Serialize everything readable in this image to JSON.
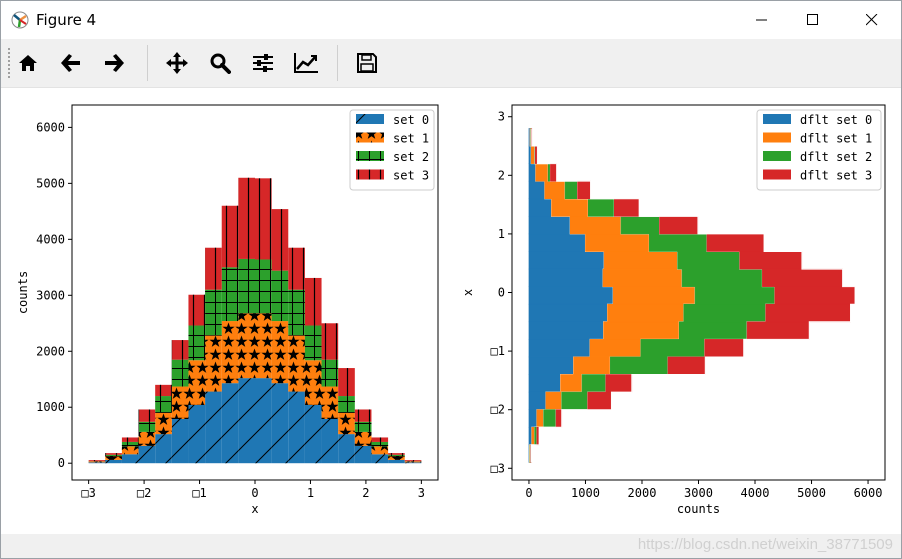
{
  "window": {
    "title": "Figure 4"
  },
  "toolbar": {
    "buttons": [
      {
        "name": "home",
        "icon": "home-icon"
      },
      {
        "name": "back",
        "icon": "arrow-left-icon"
      },
      {
        "name": "forward",
        "icon": "arrow-right-icon"
      },
      {
        "name": "pan",
        "icon": "move-icon"
      },
      {
        "name": "zoom",
        "icon": "magnifier-icon"
      },
      {
        "name": "subplots",
        "icon": "sliders-icon"
      },
      {
        "name": "edit-axes",
        "icon": "line-chart-icon"
      },
      {
        "name": "save",
        "icon": "floppy-disk-icon"
      }
    ]
  },
  "statusbar": {
    "watermark": "https://blog.csdn.net/weixin_38771509"
  },
  "chart_data": [
    {
      "type": "bar",
      "orientation": "vertical",
      "stacked": true,
      "xlabel": "x",
      "ylabel": "counts",
      "xticks": [
        "□3",
        "□2",
        "□1",
        "0",
        "1",
        "2",
        "3"
      ],
      "xtick_values": [
        -3,
        -2,
        -1,
        0,
        1,
        2,
        3
      ],
      "yticks": [
        "0",
        "1000",
        "2000",
        "3000",
        "4000",
        "5000",
        "6000"
      ],
      "ytick_values": [
        0,
        1000,
        2000,
        3000,
        4000,
        5000,
        6000
      ],
      "xlim": [
        -3.3,
        3.3
      ],
      "ylim": [
        -300,
        6400
      ],
      "bin_edges": [
        -3.0,
        -2.7,
        -2.4,
        -2.1,
        -1.8,
        -1.5,
        -1.2,
        -0.9,
        -0.6,
        -0.3,
        0.0,
        0.3,
        0.6,
        0.9,
        1.2,
        1.5,
        1.8,
        2.1,
        2.4,
        2.7,
        3.0
      ],
      "legend_position": "upper right",
      "series": [
        {
          "name": "set 0",
          "color": "#1f77b4",
          "hatch": "/",
          "values": [
            15,
            60,
            160,
            310,
            520,
            790,
            1040,
            1280,
            1430,
            1520,
            1520,
            1430,
            1280,
            1040,
            790,
            520,
            310,
            160,
            60,
            15
          ]
        },
        {
          "name": "set 1",
          "color": "#ff7f0e",
          "hatch": "*",
          "values": [
            15,
            60,
            140,
            250,
            380,
            580,
            800,
            1000,
            1110,
            1160,
            1160,
            1110,
            1000,
            800,
            580,
            380,
            250,
            140,
            60,
            15
          ]
        },
        {
          "name": "set 2",
          "color": "#2ca02c",
          "hatch": "+",
          "values": [
            5,
            30,
            80,
            180,
            300,
            480,
            620,
            820,
            960,
            970,
            960,
            900,
            820,
            620,
            480,
            300,
            180,
            80,
            30,
            5
          ]
        },
        {
          "name": "set 3",
          "color": "#d62728",
          "hatch": "|",
          "values": [
            20,
            30,
            80,
            220,
            200,
            350,
            550,
            750,
            1100,
            1450,
            1450,
            1100,
            750,
            850,
            650,
            500,
            220,
            80,
            30,
            20
          ]
        }
      ]
    },
    {
      "type": "bar",
      "orientation": "horizontal",
      "stacked": true,
      "xlabel": "counts",
      "ylabel": "x",
      "xticks": [
        "0",
        "1000",
        "2000",
        "3000",
        "4000",
        "5000",
        "6000"
      ],
      "xtick_values": [
        0,
        1000,
        2000,
        3000,
        4000,
        5000,
        6000
      ],
      "yticks": [
        "3",
        "2",
        "1",
        "0",
        "□1",
        "□2",
        "□3"
      ],
      "ytick_values": [
        3,
        2,
        1,
        0,
        -1,
        -2,
        -3
      ],
      "xlim": [
        -300,
        6300
      ],
      "ylim": [
        -3.2,
        3.2
      ],
      "bin_edges": [
        -2.9,
        -2.6,
        -2.3,
        -2.0,
        -1.7,
        -1.4,
        -1.1,
        -0.8,
        -0.5,
        -0.2,
        0.1,
        0.4,
        0.7,
        1.0,
        1.3,
        1.6,
        1.9,
        2.2,
        2.5,
        2.8
      ],
      "legend_position": "upper right",
      "series": [
        {
          "name": "dflt set 0",
          "color": "#1f77b4",
          "values": [
            10,
            50,
            140,
            300,
            560,
            790,
            1080,
            1320,
            1390,
            1490,
            1310,
            1330,
            1000,
            730,
            400,
            280,
            120,
            40,
            20
          ]
        },
        {
          "name": "dflt set 1",
          "color": "#ff7f0e",
          "values": [
            10,
            50,
            120,
            280,
            380,
            650,
            900,
            1340,
            1350,
            1450,
            1400,
            1300,
            1130,
            900,
            650,
            360,
            220,
            60,
            10
          ]
        },
        {
          "name": "dflt set 2",
          "color": "#2ca02c",
          "values": [
            10,
            40,
            220,
            460,
            420,
            1020,
            1130,
            1200,
            1450,
            1410,
            1420,
            1100,
            1020,
            680,
            460,
            220,
            40,
            10,
            10
          ]
        },
        {
          "name": "dflt set 3",
          "color": "#d62728",
          "values": [
            10,
            40,
            100,
            420,
            460,
            660,
            690,
            1100,
            1500,
            1420,
            1420,
            1100,
            1010,
            680,
            440,
            230,
            110,
            40,
            10
          ]
        }
      ]
    }
  ]
}
